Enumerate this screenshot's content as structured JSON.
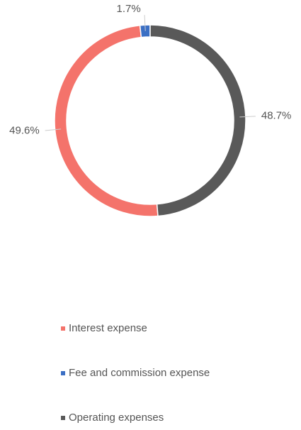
{
  "chart_data": {
    "type": "donut",
    "categories": [
      "Interest expense",
      "Fee and commission expense",
      "Operating expenses"
    ],
    "values": [
      49.6,
      1.7,
      48.7
    ],
    "value_labels": [
      "49.6%",
      "1.7%",
      "48.7%"
    ],
    "colors": [
      "#f4736b",
      "#3b6fc4",
      "#595959"
    ],
    "legend": "bottom"
  }
}
